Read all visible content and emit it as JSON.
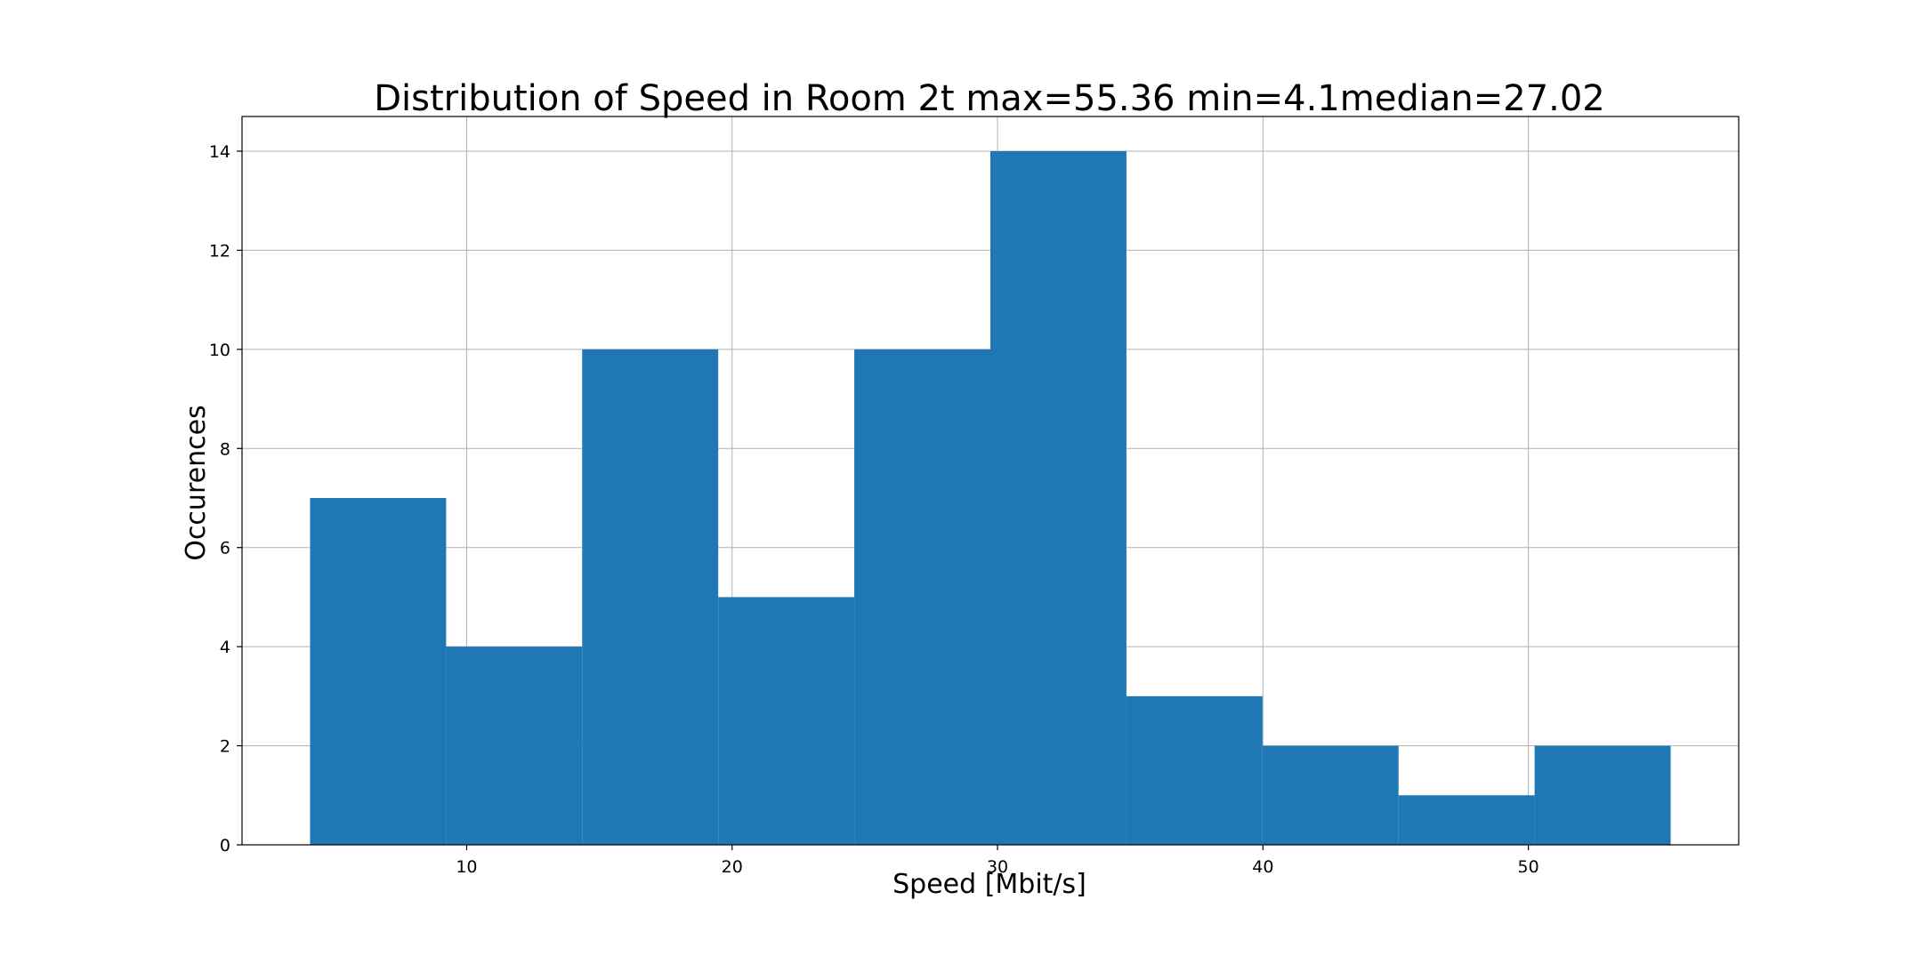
{
  "chart_data": {
    "type": "bar",
    "histogram": true,
    "title": "Distribution of Speed in Room 2t max=55.36 min=4.1median=27.02",
    "xlabel": "Speed [Mbit/s]",
    "ylabel": "Occurences",
    "bin_edges": [
      4.1,
      9.226,
      14.352,
      19.478,
      24.604,
      29.73,
      34.856,
      39.982,
      45.108,
      50.234,
      55.36
    ],
    "values": [
      7,
      4,
      10,
      5,
      10,
      14,
      3,
      2,
      1,
      2
    ],
    "xlim": [
      1.537,
      57.923
    ],
    "ylim": [
      0,
      14.7
    ],
    "xticks": [
      10,
      20,
      30,
      40,
      50
    ],
    "xtick_labels": [
      "10",
      "20",
      "30",
      "40",
      "50"
    ],
    "yticks": [
      0,
      2,
      4,
      6,
      8,
      10,
      12,
      14
    ],
    "ytick_labels": [
      "0",
      "2",
      "4",
      "6",
      "8",
      "10",
      "12",
      "14"
    ],
    "grid": true,
    "legend": false,
    "colors": {
      "bar": "#1f77b4",
      "grid": "#b0b0b0",
      "axes": "#000000",
      "background": "#ffffff"
    }
  }
}
